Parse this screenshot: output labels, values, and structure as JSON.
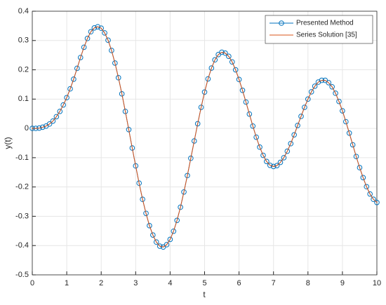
{
  "chart_data": {
    "type": "line",
    "xlabel": "t",
    "ylabel": "y(t)",
    "x": [
      0,
      0.1,
      0.2,
      0.3,
      0.4,
      0.5,
      0.6,
      0.7,
      0.8,
      0.9,
      1,
      1.1,
      1.2,
      1.3,
      1.4,
      1.5,
      1.6,
      1.7,
      1.8,
      1.9,
      2,
      2.1,
      2.2,
      2.3,
      2.4,
      2.5,
      2.6,
      2.7,
      2.8,
      2.9,
      3,
      3.1,
      3.2,
      3.3,
      3.4,
      3.5,
      3.6,
      3.7,
      3.8,
      3.9,
      4,
      4.1,
      4.2,
      4.3,
      4.4,
      4.5,
      4.6,
      4.7,
      4.8,
      4.9,
      5,
      5.1,
      5.2,
      5.3,
      5.4,
      5.5,
      5.6,
      5.7,
      5.8,
      5.9,
      6,
      6.1,
      6.2,
      6.3,
      6.4,
      6.5,
      6.6,
      6.7,
      6.8,
      6.9,
      7,
      7.1,
      7.2,
      7.3,
      7.4,
      7.5,
      7.6,
      7.7,
      7.8,
      7.9,
      8,
      8.1,
      8.2,
      8.3,
      8.4,
      8.5,
      8.6,
      8.7,
      8.8,
      8.9,
      9,
      9.1,
      9.2,
      9.3,
      9.4,
      9.5,
      9.6,
      9.7,
      9.8,
      9.9,
      10
    ],
    "series": [
      {
        "name": "Presented Method",
        "color": "#0072BD",
        "marker": "circle",
        "values": [
          0,
          0,
          0.001,
          0.004,
          0.008,
          0.015,
          0.025,
          0.04,
          0.058,
          0.08,
          0.105,
          0.135,
          0.168,
          0.205,
          0.242,
          0.277,
          0.307,
          0.33,
          0.343,
          0.347,
          0.342,
          0.326,
          0.301,
          0.266,
          0.223,
          0.173,
          0.118,
          0.058,
          -0.004,
          -0.067,
          -0.128,
          -0.187,
          -0.242,
          -0.29,
          -0.332,
          -0.364,
          -0.388,
          -0.402,
          -0.405,
          -0.397,
          -0.379,
          -0.351,
          -0.314,
          -0.269,
          -0.217,
          -0.161,
          -0.102,
          -0.043,
          0.016,
          0.072,
          0.124,
          0.169,
          0.206,
          0.234,
          0.252,
          0.26,
          0.257,
          0.246,
          0.227,
          0.2,
          0.167,
          0.13,
          0.09,
          0.049,
          0.008,
          -0.03,
          -0.064,
          -0.092,
          -0.113,
          -0.126,
          -0.13,
          -0.127,
          -0.116,
          -0.1,
          -0.078,
          -0.052,
          -0.022,
          0.01,
          0.041,
          0.072,
          0.1,
          0.125,
          0.144,
          0.158,
          0.164,
          0.164,
          0.156,
          0.142,
          0.12,
          0.092,
          0.06,
          0.023,
          -0.016,
          -0.056,
          -0.096,
          -0.134,
          -0.168,
          -0.199,
          -0.224,
          -0.242,
          -0.253
        ]
      },
      {
        "name": "Series Solution [35]",
        "color": "#D95319",
        "marker": "none",
        "values": [
          0,
          0,
          0.001,
          0.004,
          0.008,
          0.015,
          0.025,
          0.04,
          0.058,
          0.08,
          0.105,
          0.135,
          0.168,
          0.205,
          0.242,
          0.277,
          0.307,
          0.33,
          0.343,
          0.347,
          0.342,
          0.326,
          0.301,
          0.266,
          0.223,
          0.173,
          0.118,
          0.058,
          -0.004,
          -0.067,
          -0.128,
          -0.187,
          -0.242,
          -0.29,
          -0.332,
          -0.364,
          -0.388,
          -0.402,
          -0.405,
          -0.397,
          -0.379,
          -0.351,
          -0.314,
          -0.269,
          -0.217,
          -0.161,
          -0.102,
          -0.043,
          0.016,
          0.072,
          0.124,
          0.169,
          0.206,
          0.234,
          0.252,
          0.26,
          0.257,
          0.246,
          0.227,
          0.2,
          0.167,
          0.13,
          0.09,
          0.049,
          0.008,
          -0.03,
          -0.064,
          -0.092,
          -0.113,
          -0.126,
          -0.13,
          -0.127,
          -0.116,
          -0.1,
          -0.078,
          -0.052,
          -0.022,
          0.01,
          0.041,
          0.072,
          0.1,
          0.125,
          0.144,
          0.158,
          0.164,
          0.164,
          0.156,
          0.142,
          0.12,
          0.092,
          0.06,
          0.023,
          -0.016,
          -0.056,
          -0.096,
          -0.134,
          -0.168,
          -0.199,
          -0.224,
          -0.242,
          -0.253
        ]
      }
    ],
    "xlim": [
      0,
      10
    ],
    "xticks": [
      0,
      1,
      2,
      3,
      4,
      5,
      6,
      7,
      8,
      9,
      10
    ],
    "ylim": [
      -0.5,
      0.4
    ],
    "yticks": [
      -0.5,
      -0.4,
      -0.3,
      -0.2,
      -0.1,
      0,
      0.1,
      0.2,
      0.3,
      0.4
    ],
    "grid": true,
    "legend": "northeast"
  }
}
